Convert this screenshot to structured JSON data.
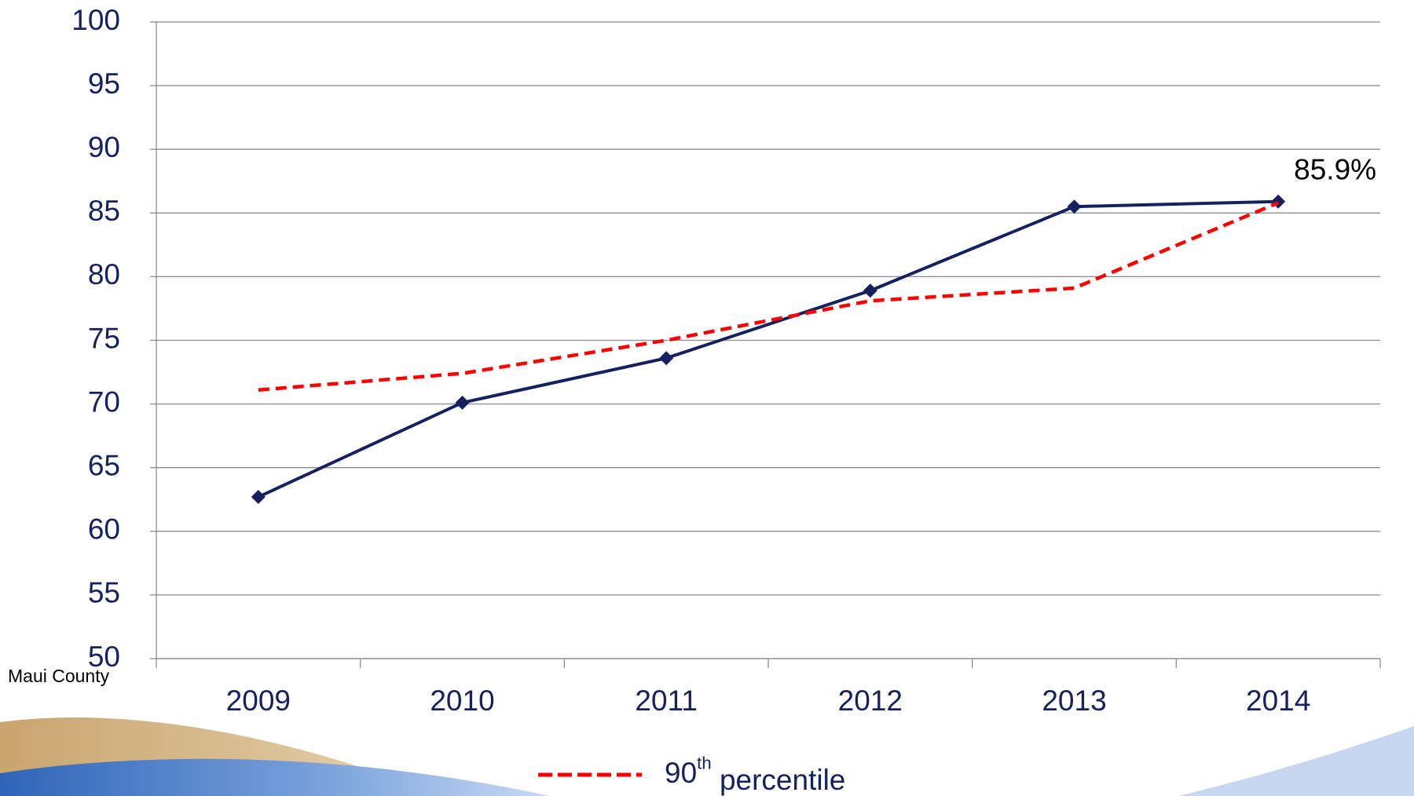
{
  "chart_data": {
    "type": "line",
    "categories": [
      "2009",
      "2010",
      "2011",
      "2012",
      "2013",
      "2014"
    ],
    "series": [
      {
        "name": "Maui County",
        "color": "#14215e",
        "values": [
          62.7,
          70.1,
          73.6,
          78.9,
          85.5,
          85.9
        ]
      },
      {
        "name": "90th percentile",
        "color": "#ff0000",
        "dashed": true,
        "values": [
          71.1,
          72.4,
          75.0,
          78.1,
          79.1,
          85.8
        ]
      }
    ],
    "annotations": [
      {
        "text": "85.9%",
        "series": 0,
        "point": 5
      }
    ],
    "ylim": [
      50,
      100
    ],
    "yticks": [
      50,
      55,
      60,
      65,
      70,
      75,
      80,
      85,
      90,
      95,
      100
    ],
    "grid": true
  }
}
